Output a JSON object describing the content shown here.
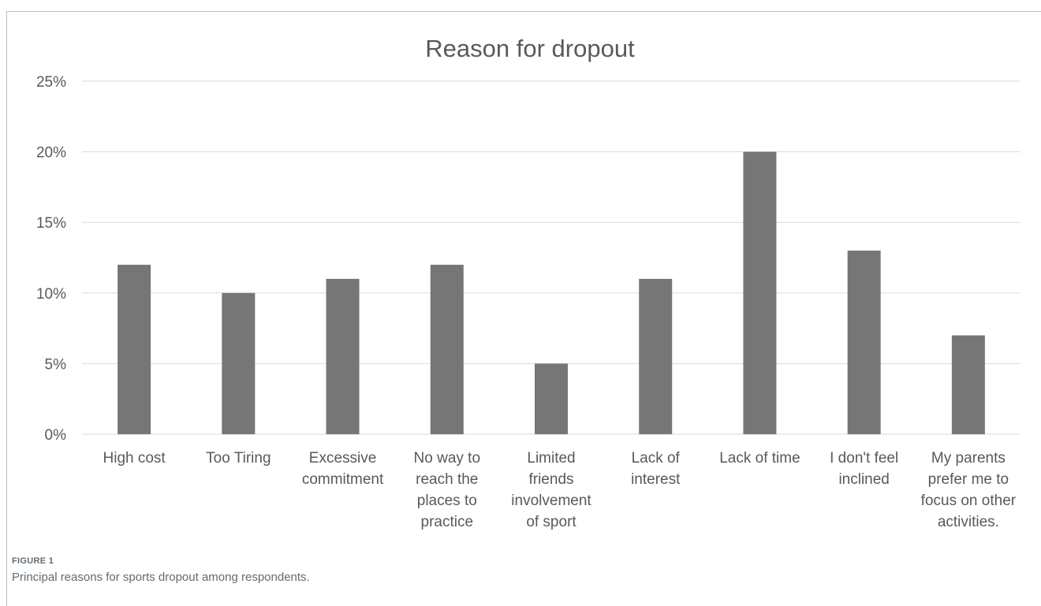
{
  "chart_data": {
    "type": "bar",
    "title": "Reason for dropout",
    "categories": [
      [
        "High cost"
      ],
      [
        "Too Tiring"
      ],
      [
        "Excessive",
        "commitment"
      ],
      [
        "No way to",
        "reach the",
        "places to",
        "practice"
      ],
      [
        "Limited",
        "friends",
        "involvement",
        "of sport"
      ],
      [
        "Lack of",
        "interest"
      ],
      [
        "Lack of time"
      ],
      [
        "I don't feel",
        "inclined"
      ],
      [
        "My parents",
        "prefer me to",
        "focus on other",
        "activities."
      ]
    ],
    "values": [
      12,
      10,
      11,
      12,
      5,
      11,
      20,
      13,
      7
    ],
    "ylim": [
      0,
      25
    ],
    "yticks": [
      "0%",
      "5%",
      "10%",
      "15%",
      "20%",
      "25%"
    ],
    "ytick_values": [
      0,
      5,
      10,
      15,
      20,
      25
    ],
    "grid": true,
    "bar_color": "#767676",
    "grid_color": "#d9d9d9",
    "text_color": "#595959"
  },
  "figure": {
    "label": "FIGURE 1",
    "caption": "Principal reasons for sports dropout among respondents."
  }
}
